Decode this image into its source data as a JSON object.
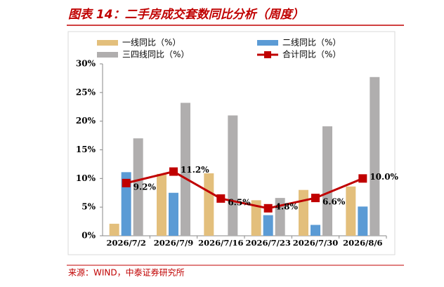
{
  "title": "图表 14：二手房成交套数同比分析（周度）",
  "source": "来源：WIND，中泰证券研究所",
  "chart_data": {
    "type": "bar-line",
    "categories": [
      "2026/7/2",
      "2026/7/9",
      "2026/7/16",
      "2026/7/23",
      "2026/7/30",
      "2026/8/6"
    ],
    "series": [
      {
        "name": "一线同比（%）",
        "color": "#e3bf7c",
        "type": "bar",
        "values": [
          2.1,
          10.8,
          10.9,
          6.2,
          8.0,
          8.6
        ]
      },
      {
        "name": "二线同比（%）",
        "color": "#5b9bd5",
        "type": "bar",
        "values": [
          11.1,
          7.5,
          0,
          3.6,
          1.9,
          5.1
        ]
      },
      {
        "name": "三四线同比（%）",
        "color": "#b0aeae",
        "type": "bar",
        "values": [
          17.0,
          23.2,
          21.0,
          6.6,
          19.1,
          27.7
        ]
      },
      {
        "name": "合计同比（%）",
        "color": "#c00000",
        "type": "line",
        "values": [
          9.2,
          11.2,
          6.5,
          4.8,
          6.6,
          10.0
        ],
        "value_labels": [
          "9.2%",
          "11.2%",
          "6.5%",
          "4.8%",
          "6.6%",
          "10.0%"
        ]
      }
    ],
    "ylim": [
      0,
      30
    ],
    "yticks": [
      {
        "value": 0,
        "label": "0%"
      },
      {
        "value": 5,
        "label": "5%"
      },
      {
        "value": 10,
        "label": "10%"
      },
      {
        "value": 15,
        "label": "15%"
      },
      {
        "value": 20,
        "label": "20%"
      },
      {
        "value": 25,
        "label": "25%"
      },
      {
        "value": 30,
        "label": "30%"
      }
    ]
  }
}
